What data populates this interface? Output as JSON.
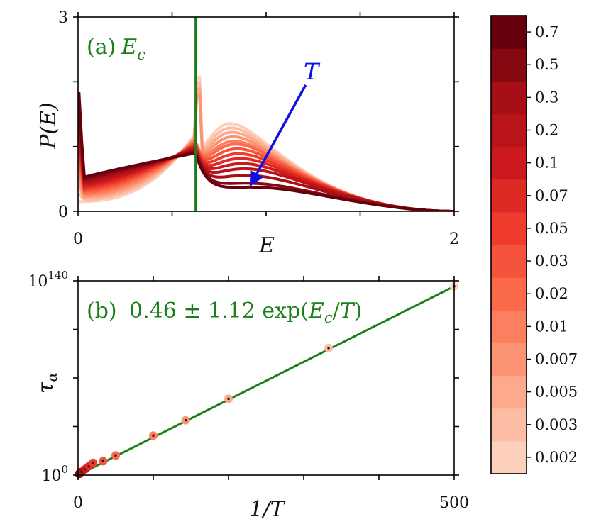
{
  "colors": {
    "fit_line": "#1a7f1a",
    "arrow": "#1010e0",
    "colormap": "Reds"
  },
  "chart_data": [
    {
      "panel": "a",
      "type": "line",
      "label": "(a)",
      "annotation": "E_c",
      "arrow_label": "T",
      "xlabel": "E",
      "ylabel": "P(E)",
      "xlim": [
        0,
        2
      ],
      "ylim": [
        0,
        3
      ],
      "x_tick_labels": [
        "0",
        "",
        "",
        "",
        "2"
      ],
      "y_tick_labels": [
        "0",
        "",
        "",
        "3"
      ],
      "Ec": 0.625,
      "series_temperatures": [
        0.002,
        0.003,
        0.005,
        0.007,
        0.01,
        0.02,
        0.03,
        0.05,
        0.07,
        0.1,
        0.2,
        0.3,
        0.5,
        0.7
      ],
      "peak_values": [
        2.3,
        2.2,
        2.1,
        2.0,
        1.9,
        1.85,
        1.75,
        1.65,
        1.55,
        1.45,
        1.35,
        1.2,
        1.0,
        0.95
      ],
      "low_T_curve_at_Ec": 1.2,
      "high_T_curve_at_Ec": 0.9
    },
    {
      "panel": "b",
      "type": "scatter",
      "label": "(b)",
      "fit_label": "0.46 ± 1.12 exp(E_c/T)",
      "xlabel": "1/T",
      "ylabel": "τ_α",
      "xlim": [
        0,
        500
      ],
      "y_scale": "log",
      "ylim_exponent": [
        0,
        140
      ],
      "x_tick_labels": [
        "0",
        "",
        "",
        "",
        "",
        "500"
      ],
      "y_tick_labels": [
        "10^0",
        "",
        "",
        "",
        "10^140"
      ],
      "points": [
        {
          "x": 1.43,
          "log10_y": 0.9
        },
        {
          "x": 2.0,
          "log10_y": 1.2
        },
        {
          "x": 3.33,
          "log10_y": 1.8
        },
        {
          "x": 5.0,
          "log10_y": 2.5
        },
        {
          "x": 10.0,
          "log10_y": 4.5
        },
        {
          "x": 14.3,
          "log10_y": 6.3
        },
        {
          "x": 20.0,
          "log10_y": 8.8
        },
        {
          "x": 33.3,
          "log10_y": 10.0
        },
        {
          "x": 50.0,
          "log10_y": 14.2
        },
        {
          "x": 100.0,
          "log10_y": 28.5
        },
        {
          "x": 143.0,
          "log10_y": 39.5
        },
        {
          "x": 200.0,
          "log10_y": 55.0
        },
        {
          "x": 333.0,
          "log10_y": 91.5
        },
        {
          "x": 500.0,
          "log10_y": 136.0
        }
      ],
      "fit_line": [
        [
          0,
          0
        ],
        [
          500,
          136
        ]
      ]
    },
    {
      "panel": "colorbar",
      "type": "heatmap",
      "tick_labels": [
        "0.002",
        "0.003",
        "0.005",
        "0.007",
        "0.01",
        "0.02",
        "0.03",
        "0.05",
        "0.07",
        "0.1",
        "0.2",
        "0.3",
        "0.5",
        "0.7"
      ]
    }
  ]
}
